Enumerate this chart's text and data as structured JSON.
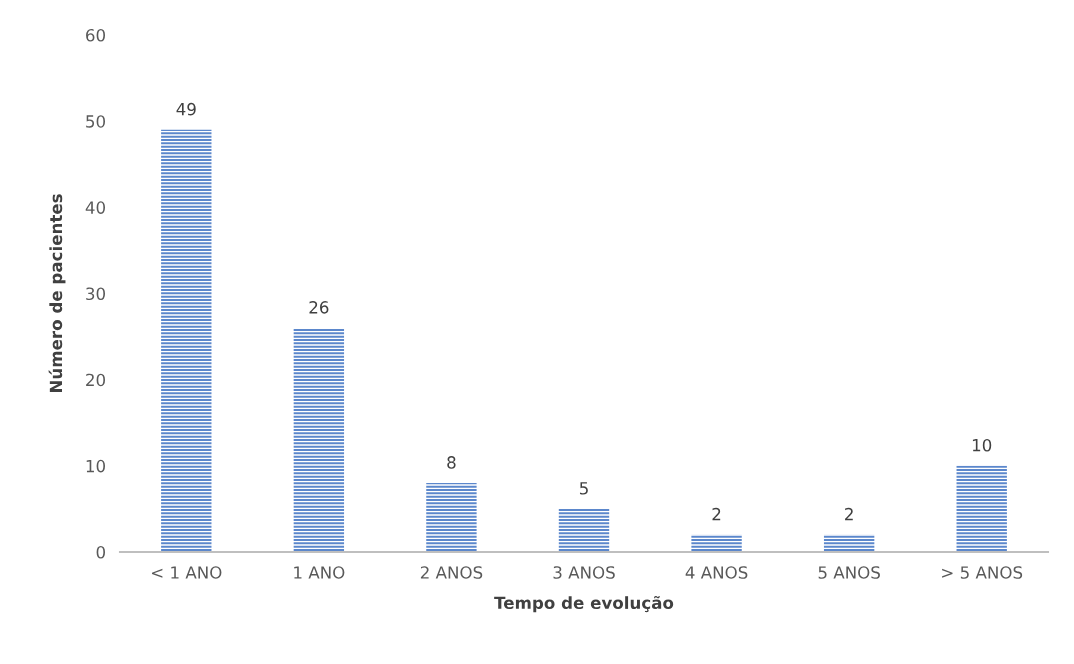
{
  "chart_data": {
    "type": "bar",
    "xlabel": "Tempo de evolução",
    "ylabel": "Número de pacientes",
    "categories": [
      "< 1 ANO",
      "1 ANO",
      "2 ANOS",
      "3 ANOS",
      "4 ANOS",
      "5 ANOS",
      "> 5 ANOS"
    ],
    "values": [
      49,
      26,
      8,
      5,
      2,
      2,
      10
    ],
    "color": "#5b87cc",
    "ylim": [
      0,
      60
    ],
    "yticks": [
      0,
      10,
      20,
      30,
      40,
      50,
      60
    ],
    "grid": false,
    "data_labels": true
  }
}
